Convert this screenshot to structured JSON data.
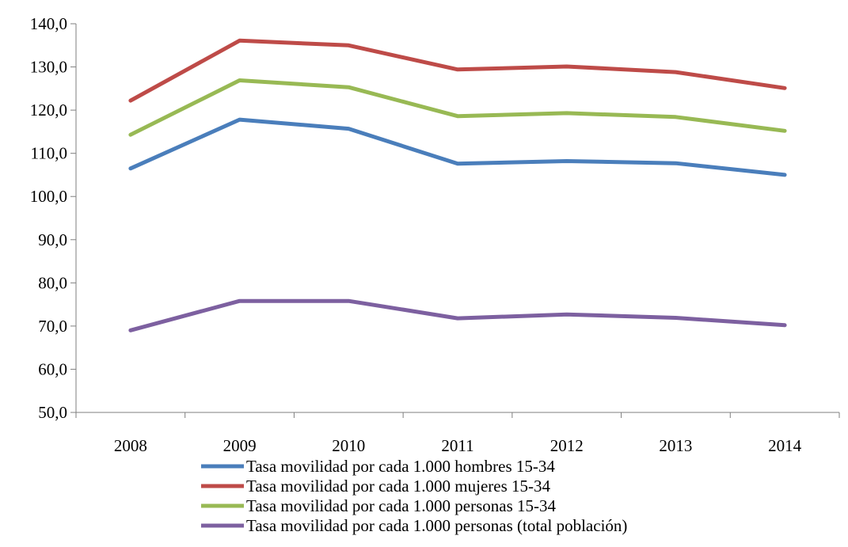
{
  "chart_data": {
    "type": "line",
    "title": "",
    "xlabel": "",
    "ylabel": "",
    "categories": [
      "2008",
      "2009",
      "2010",
      "2011",
      "2012",
      "2013",
      "2014"
    ],
    "ylim": [
      50,
      140
    ],
    "yticks": [
      50,
      60,
      70,
      80,
      90,
      100,
      110,
      120,
      130,
      140
    ],
    "ytick_labels": [
      "50,0",
      "60,0",
      "70,0",
      "80,0",
      "90,0",
      "100,0",
      "110,0",
      "120,0",
      "130,0",
      "140,0"
    ],
    "grid": false,
    "legend_position": "bottom",
    "series": [
      {
        "name": "Tasa movilidad por cada 1.000 hombres 15-34",
        "color": "#4a7ebb",
        "values": [
          106.5,
          117.8,
          115.7,
          107.6,
          108.2,
          107.7,
          105.0
        ]
      },
      {
        "name": "Tasa movilidad por cada 1.000 mujeres 15-34",
        "color": "#be4b48",
        "values": [
          122.2,
          136.1,
          135.0,
          129.4,
          130.1,
          128.8,
          125.1
        ]
      },
      {
        "name": "Tasa movilidad por cada 1.000 personas 15-34",
        "color": "#98b954",
        "values": [
          114.3,
          126.9,
          125.3,
          118.6,
          119.3,
          118.4,
          115.2
        ]
      },
      {
        "name": "Tasa movilidad por cada 1.000 personas (total población)",
        "color": "#7d60a0",
        "values": [
          69.0,
          75.8,
          75.8,
          71.8,
          72.7,
          71.9,
          70.2
        ]
      }
    ]
  }
}
